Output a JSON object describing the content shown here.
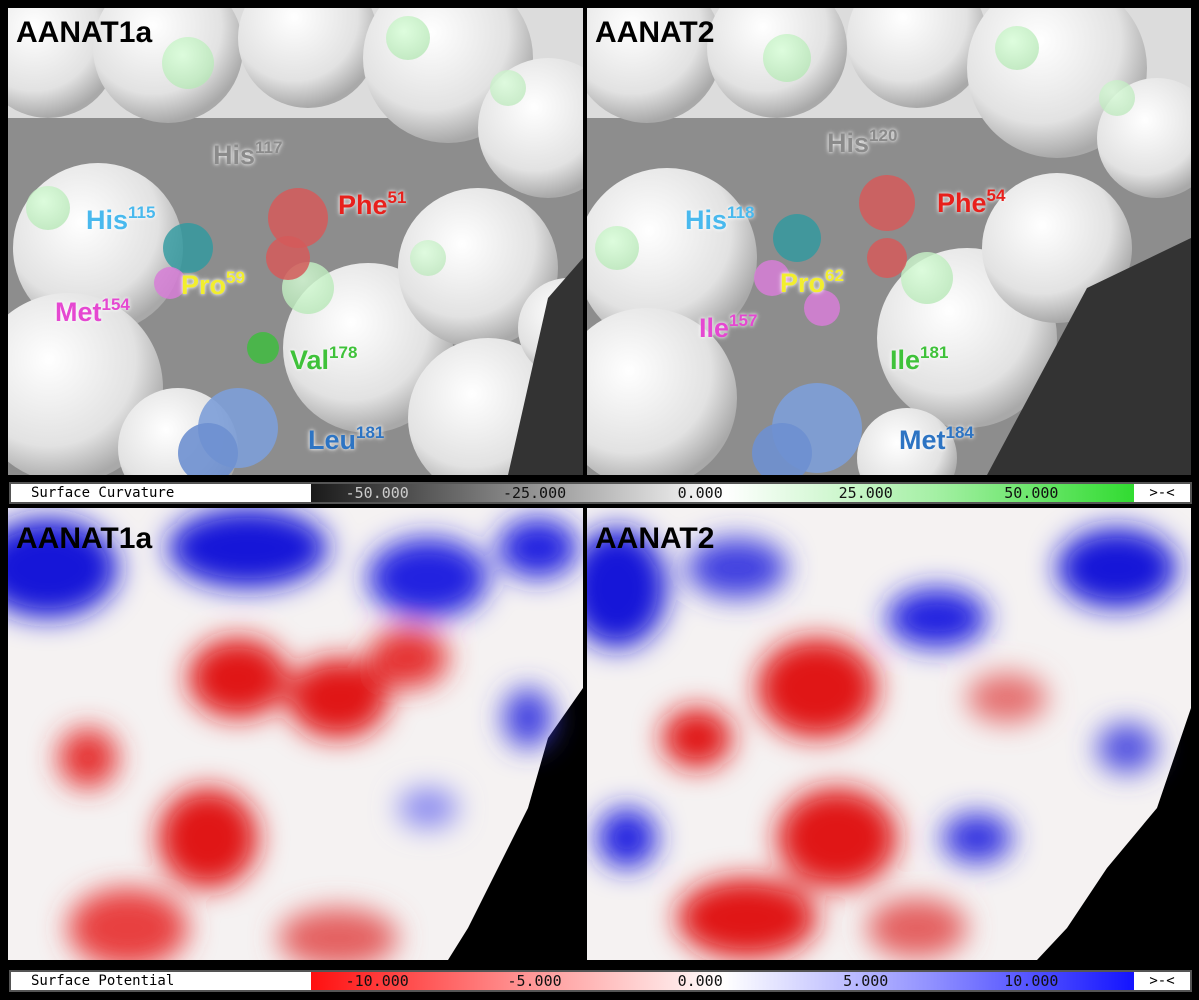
{
  "top_row": {
    "left": {
      "title": "AANAT1a",
      "residues": [
        {
          "name": "His",
          "num": "117",
          "color": "#8a8a8a"
        },
        {
          "name": "Phe",
          "num": "51",
          "color": "#e8201c"
        },
        {
          "name": "His",
          "num": "115",
          "color": "#49b9ee"
        },
        {
          "name": "Pro",
          "num": "59",
          "color": "#f2ee2e"
        },
        {
          "name": "Met",
          "num": "154",
          "color": "#e548d1"
        },
        {
          "name": "Val",
          "num": "178",
          "color": "#3fc23a"
        },
        {
          "name": "Leu",
          "num": "181",
          "color": "#2d74c3"
        }
      ]
    },
    "right": {
      "title": "AANAT2",
      "residues": [
        {
          "name": "His",
          "num": "120",
          "color": "#8a8a8a"
        },
        {
          "name": "Phe",
          "num": "54",
          "color": "#e8201c"
        },
        {
          "name": "His",
          "num": "118",
          "color": "#49b9ee"
        },
        {
          "name": "Pro",
          "num": "62",
          "color": "#f2ee2e"
        },
        {
          "name": "Ile",
          "num": "157",
          "color": "#e548d1"
        },
        {
          "name": "Ile",
          "num": "181",
          "color": "#3fc23a"
        },
        {
          "name": "Met",
          "num": "184",
          "color": "#2d74c3"
        }
      ]
    }
  },
  "curvature_bar": {
    "label": "Surface Curvature",
    "ticks": [
      "-50.000",
      "-25.000",
      "0.000",
      "25.000",
      "50.000"
    ],
    "button": ">-<",
    "colors": {
      "low": "#1a1a1a",
      "mid": "#ffffff",
      "high": "#2edb2e"
    }
  },
  "bottom_row": {
    "left": {
      "title": "AANAT1a"
    },
    "right": {
      "title": "AANAT2"
    }
  },
  "potential_bar": {
    "label": "Surface Potential",
    "ticks": [
      "-10.000",
      "-5.000",
      "0.000",
      "5.000",
      "10.000"
    ],
    "button": ">-<",
    "colors": {
      "low": "#ff1010",
      "mid": "#ffffff",
      "high": "#1010ff"
    }
  }
}
